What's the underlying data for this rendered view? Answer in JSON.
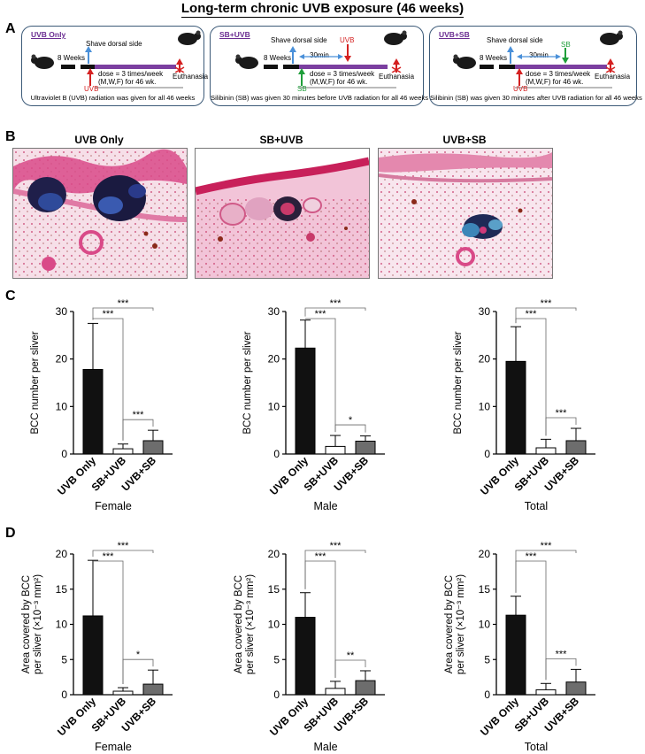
{
  "title": "Long-term chronic UVB exposure (46 weeks)",
  "panels": {
    "a": "A",
    "b": "B",
    "c": "C",
    "d": "D"
  },
  "schemes": [
    {
      "tag": "UVB Only",
      "shave": "Shave dorsal side",
      "weeks": "8 Weeks",
      "dose": "dose = 3 times/week",
      "dose2": "(M,W,F) for 46 wk.",
      "euth": "Euthanasia",
      "uvb": "UVB",
      "sb": "",
      "interval": "",
      "caption": "Ultraviolet B (UVB) radiation was given for all 46 weeks"
    },
    {
      "tag": "SB+UVB",
      "shave": "Shave dorsal side",
      "weeks": "8 Weeks",
      "dose": "dose = 3 times/week",
      "dose2": "(M,W,F) for 46 wk.",
      "euth": "Euthanasia",
      "uvb": "UVB",
      "sb": "SB",
      "interval": "30min",
      "caption": "Silibinin (SB) was given 30 minutes before UVB radiation for all 46 weeks"
    },
    {
      "tag": "UVB+SB",
      "shave": "Shave dorsal side",
      "weeks": "8 Weeks",
      "dose": "dose = 3 times/week",
      "dose2": "(M,W,F) for 46 wk.",
      "euth": "Euthanasia",
      "uvb": "UVB",
      "sb": "SB",
      "interval": "30min",
      "caption": "Silibinin (SB) was given 30 minutes after UVB radiation for all 46 weeks"
    }
  ],
  "histology_titles": [
    "UVB Only",
    "SB+UVB",
    "UVB+SB"
  ],
  "colors": {
    "uvb_only": "#111111",
    "sb_uvb": "#ffffff",
    "uvb_sb": "#6d6d6d",
    "scheme_border": "#3c5a78",
    "purple": "#7b3fa0",
    "red_arrow": "#d42020",
    "blue_arrow": "#4a90d9",
    "green_arrow": "#1f9e3a"
  },
  "chart_data": [
    {
      "panel": "C",
      "type": "bar",
      "xlabel": "Female",
      "ylabel": "BCC number per sliver",
      "categories": [
        "UVB Only",
        "SB+UVB",
        "UVB+SB"
      ],
      "values": [
        17.8,
        1.1,
        2.8
      ],
      "errors": [
        9.7,
        1.0,
        2.2
      ],
      "ylim": [
        0,
        30
      ],
      "yticks": [
        0,
        10,
        20,
        30
      ],
      "sig": [
        {
          "from": 0,
          "to": 1,
          "label": "***"
        },
        {
          "from": 0,
          "to": 2,
          "label": "***"
        },
        {
          "from": 1,
          "to": 2,
          "label": "***"
        }
      ]
    },
    {
      "panel": "C",
      "type": "bar",
      "xlabel": "Male",
      "ylabel": "BCC number per sliver",
      "categories": [
        "UVB Only",
        "SB+UVB",
        "UVB+SB"
      ],
      "values": [
        22.3,
        1.6,
        2.7
      ],
      "errors": [
        5.9,
        2.3,
        1.1
      ],
      "ylim": [
        0,
        30
      ],
      "yticks": [
        0,
        10,
        20,
        30
      ],
      "sig": [
        {
          "from": 0,
          "to": 1,
          "label": "***"
        },
        {
          "from": 0,
          "to": 2,
          "label": "***"
        },
        {
          "from": 1,
          "to": 2,
          "label": "*"
        }
      ]
    },
    {
      "panel": "C",
      "type": "bar",
      "xlabel": "Total",
      "ylabel": "BCC number per sliver",
      "categories": [
        "UVB Only",
        "SB+UVB",
        "UVB+SB"
      ],
      "values": [
        19.5,
        1.3,
        2.8
      ],
      "errors": [
        7.3,
        1.8,
        2.6
      ],
      "ylim": [
        0,
        30
      ],
      "yticks": [
        0,
        10,
        20,
        30
      ],
      "sig": [
        {
          "from": 0,
          "to": 1,
          "label": "***"
        },
        {
          "from": 0,
          "to": 2,
          "label": "***"
        },
        {
          "from": 1,
          "to": 2,
          "label": "***"
        }
      ]
    },
    {
      "panel": "D",
      "type": "bar",
      "xlabel": "Female",
      "ylabel": "Area covered by BCC per sliver (×10⁻³ mm²)",
      "categories": [
        "UVB Only",
        "SB+UVB",
        "UVB+SB"
      ],
      "values": [
        11.2,
        0.5,
        1.5
      ],
      "errors": [
        7.9,
        0.5,
        2.0
      ],
      "ylim": [
        0,
        20
      ],
      "yticks": [
        0,
        5,
        10,
        15,
        20
      ],
      "sig": [
        {
          "from": 0,
          "to": 1,
          "label": "***"
        },
        {
          "from": 0,
          "to": 2,
          "label": "***"
        },
        {
          "from": 1,
          "to": 2,
          "label": "*"
        }
      ]
    },
    {
      "panel": "D",
      "type": "bar",
      "xlabel": "Male",
      "ylabel": "Area covered by BCC per sliver (×10⁻³ mm²)",
      "categories": [
        "UVB Only",
        "SB+UVB",
        "UVB+SB"
      ],
      "values": [
        11.0,
        0.9,
        2.0
      ],
      "errors": [
        3.5,
        1.0,
        1.4
      ],
      "ylim": [
        0,
        20
      ],
      "yticks": [
        0,
        5,
        10,
        15,
        20
      ],
      "sig": [
        {
          "from": 0,
          "to": 1,
          "label": "***"
        },
        {
          "from": 0,
          "to": 2,
          "label": "***"
        },
        {
          "from": 1,
          "to": 2,
          "label": "**"
        }
      ]
    },
    {
      "panel": "D",
      "type": "bar",
      "xlabel": "Total",
      "ylabel": "Area covered by BCC per sliver (×10⁻³ mm²)",
      "categories": [
        "UVB Only",
        "SB+UVB",
        "UVB+SB"
      ],
      "values": [
        11.3,
        0.7,
        1.8
      ],
      "errors": [
        2.7,
        0.9,
        1.8
      ],
      "ylim": [
        0,
        20
      ],
      "yticks": [
        0,
        5,
        10,
        15,
        20
      ],
      "sig": [
        {
          "from": 0,
          "to": 1,
          "label": "***"
        },
        {
          "from": 0,
          "to": 2,
          "label": "***"
        },
        {
          "from": 1,
          "to": 2,
          "label": "***"
        }
      ]
    }
  ]
}
